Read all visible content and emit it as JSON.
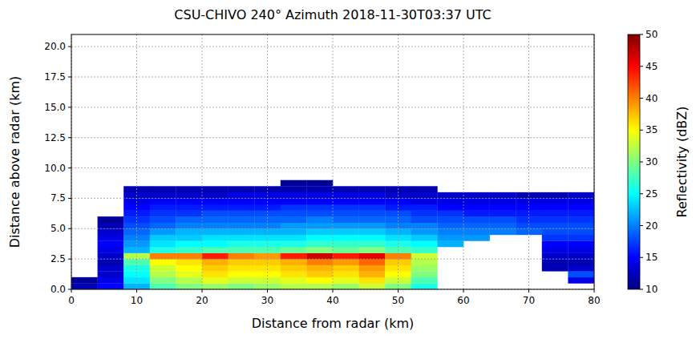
{
  "chart_data": {
    "type": "heatmap",
    "title": "CSU-CHIVO 240° Azimuth  2018-11-30T03:37 UTC",
    "x_label": "Distance from radar (km)",
    "y_label": "Distance above radar (km)",
    "xlim": [
      0,
      80
    ],
    "ylim": [
      0,
      21
    ],
    "xticks": [
      0,
      10,
      20,
      30,
      40,
      50,
      60,
      70,
      80
    ],
    "yticks": [
      {
        "value": 0,
        "label": "0.0"
      },
      {
        "value": 2.5,
        "label": "2.5"
      },
      {
        "value": 5,
        "label": "5.0"
      },
      {
        "value": 7.5,
        "label": "7.5"
      },
      {
        "value": 10,
        "label": "10.0"
      },
      {
        "value": 12.5,
        "label": "12.5"
      },
      {
        "value": 15,
        "label": "15.0"
      },
      {
        "value": 17.5,
        "label": "17.5"
      },
      {
        "value": 20,
        "label": "20.0"
      }
    ],
    "grid": true,
    "x": [
      2,
      6,
      10,
      14,
      18,
      22,
      26,
      30,
      34,
      38,
      42,
      46,
      50,
      54,
      58,
      62,
      66,
      70,
      74,
      78
    ],
    "y": [
      0.25,
      0.75,
      1.25,
      1.75,
      2.25,
      2.75,
      3.25,
      3.75,
      4.25,
      4.75,
      5.25,
      5.75,
      6.25,
      6.75,
      7.25,
      7.75,
      8.25,
      8.75
    ],
    "values": [
      [
        12,
        11,
        null,
        null,
        null,
        null,
        null,
        null,
        null,
        null,
        null,
        null,
        null,
        null,
        null,
        null,
        null,
        null
      ],
      [
        15,
        14,
        13,
        13,
        12,
        13,
        14,
        15,
        14,
        13,
        12,
        11,
        null,
        null,
        null,
        null,
        null,
        null
      ],
      [
        22,
        24,
        25,
        26,
        28,
        32,
        22,
        21,
        20,
        19,
        18,
        17,
        16,
        15,
        14,
        13,
        12,
        null
      ],
      [
        28,
        30,
        32,
        33,
        35,
        40,
        26,
        24,
        23,
        21,
        19,
        18,
        17,
        16,
        15,
        13,
        12,
        null
      ],
      [
        30,
        32,
        34,
        35,
        36,
        40,
        27,
        25,
        23,
        22,
        20,
        19,
        17,
        16,
        15,
        13,
        12,
        null
      ],
      [
        31,
        34,
        36,
        37,
        38,
        44,
        28,
        25,
        24,
        22,
        20,
        19,
        18,
        16,
        15,
        13,
        12,
        null
      ],
      [
        30,
        33,
        35,
        36,
        37,
        40,
        28,
        26,
        24,
        22,
        20,
        19,
        18,
        16,
        15,
        14,
        12,
        null
      ],
      [
        31,
        33,
        35,
        36,
        37,
        39,
        28,
        26,
        24,
        22,
        20,
        19,
        18,
        16,
        15,
        14,
        12,
        null
      ],
      [
        32,
        34,
        36,
        37,
        38,
        44,
        29,
        26,
        24,
        22,
        21,
        19,
        18,
        17,
        15,
        14,
        12,
        11
      ],
      [
        32,
        35,
        37,
        38,
        40,
        47,
        30,
        27,
        25,
        23,
        21,
        20,
        18,
        17,
        15,
        14,
        12,
        11
      ],
      [
        31,
        34,
        36,
        37,
        39,
        44,
        29,
        27,
        25,
        23,
        21,
        19,
        18,
        17,
        15,
        14,
        12,
        null
      ],
      [
        33,
        36,
        38,
        39,
        41,
        46,
        30,
        27,
        25,
        23,
        21,
        19,
        18,
        17,
        15,
        14,
        12,
        null
      ],
      [
        30,
        33,
        35,
        36,
        37,
        40,
        28,
        26,
        24,
        22,
        20,
        19,
        18,
        16,
        15,
        13,
        12,
        null
      ],
      [
        26,
        28,
        30,
        31,
        32,
        33,
        27,
        25,
        23,
        21,
        20,
        18,
        17,
        16,
        14,
        13,
        12,
        null
      ],
      [
        null,
        null,
        null,
        null,
        null,
        null,
        null,
        22,
        21,
        20,
        19,
        18,
        17,
        15,
        14,
        13,
        null,
        null
      ],
      [
        null,
        null,
        null,
        null,
        null,
        null,
        null,
        null,
        21,
        20,
        19,
        18,
        16,
        15,
        14,
        13,
        null,
        null
      ],
      [
        null,
        null,
        null,
        null,
        null,
        null,
        null,
        null,
        null,
        20,
        19,
        18,
        16,
        15,
        14,
        13,
        null,
        null
      ],
      [
        null,
        null,
        null,
        null,
        null,
        null,
        null,
        null,
        null,
        19,
        18,
        17,
        16,
        15,
        14,
        12,
        null,
        null
      ],
      [
        null,
        null,
        null,
        12,
        12,
        13,
        14,
        15,
        17,
        18,
        18,
        17,
        16,
        15,
        14,
        12,
        null,
        null
      ],
      [
        null,
        14,
        18,
        13,
        12,
        13,
        14,
        15,
        17,
        18,
        18,
        17,
        16,
        15,
        14,
        13,
        null,
        null
      ]
    ],
    "colorbar": {
      "label": "Reflectivity (dBZ)",
      "range": [
        10,
        50
      ],
      "ticks": [
        10,
        15,
        20,
        25,
        30,
        35,
        40,
        45,
        50
      ]
    }
  }
}
